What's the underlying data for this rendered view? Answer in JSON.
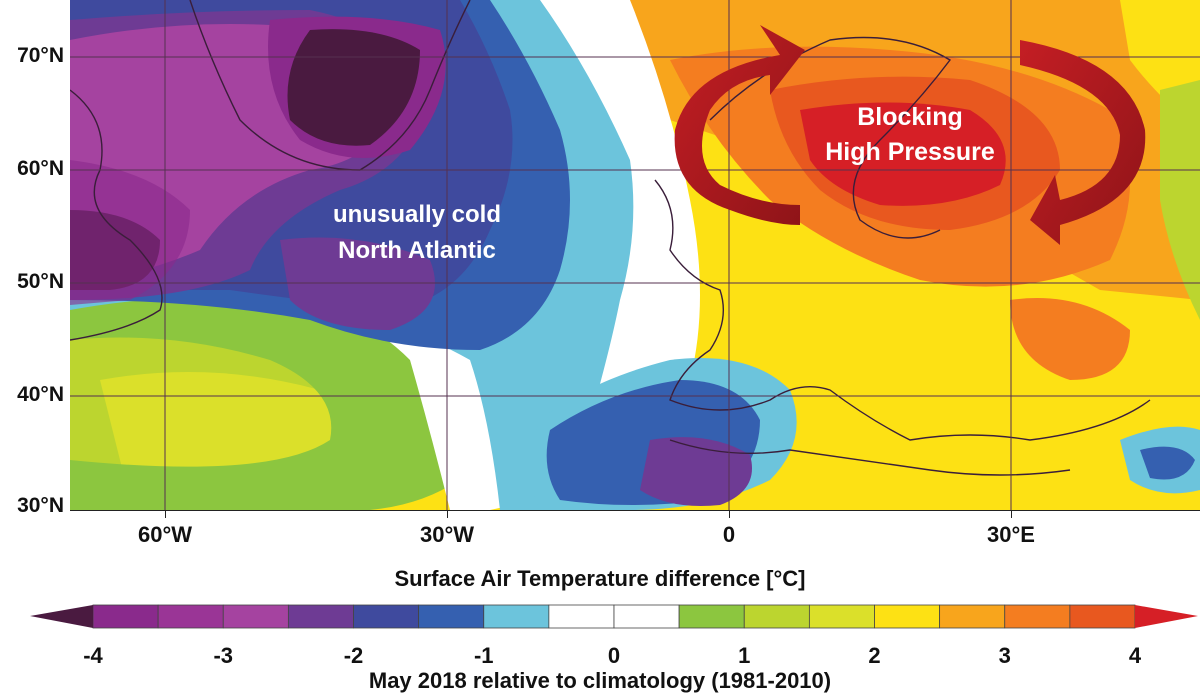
{
  "map": {
    "lat_labels": [
      "70°N",
      "60°N",
      "50°N",
      "40°N",
      "30°N"
    ],
    "lon_labels": [
      "60°W",
      "30°W",
      "0",
      "30°E"
    ],
    "annotations": {
      "cold_line1": "unusually cold",
      "cold_line2": "North Atlantic",
      "high_line1": "Blocking",
      "high_line2": "High Pressure"
    }
  },
  "colorbar": {
    "title": "Surface Air Temperature difference [°C]",
    "tick_labels": [
      "-4",
      "-3",
      "-2",
      "-1",
      "0",
      "1",
      "2",
      "3",
      "4"
    ],
    "bins": [
      {
        "from": -4.0,
        "to": -3.5,
        "color": "#8a2a8c"
      },
      {
        "from": -3.5,
        "to": -3.0,
        "color": "#9a3596"
      },
      {
        "from": -3.0,
        "to": -2.5,
        "color": "#a543a0"
      },
      {
        "from": -2.5,
        "to": -2.0,
        "color": "#6e3b94"
      },
      {
        "from": -2.0,
        "to": -1.5,
        "color": "#3f4a9e"
      },
      {
        "from": -1.5,
        "to": -1.0,
        "color": "#3560b0"
      },
      {
        "from": -1.0,
        "to": -0.5,
        "color": "#6cc4dc"
      },
      {
        "from": -0.5,
        "to": 0.0,
        "color": "#ffffff"
      },
      {
        "from": 0.0,
        "to": 0.5,
        "color": "#ffffff"
      },
      {
        "from": 0.5,
        "to": 1.0,
        "color": "#8cc63f"
      },
      {
        "from": 1.0,
        "to": 1.5,
        "color": "#bcd52f"
      },
      {
        "from": 1.5,
        "to": 2.0,
        "color": "#dbe02a"
      },
      {
        "from": 2.0,
        "to": 2.5,
        "color": "#fde114"
      },
      {
        "from": 2.5,
        "to": 3.0,
        "color": "#f8a51c"
      },
      {
        "from": 3.0,
        "to": 3.5,
        "color": "#f47d20"
      },
      {
        "from": 3.5,
        "to": 4.0,
        "color": "#e8581f"
      }
    ],
    "low_end_color": "#4a1a40",
    "high_end_color": "#d61f26"
  },
  "caption": "May 2018 relative to climatology (1981-2010)"
}
